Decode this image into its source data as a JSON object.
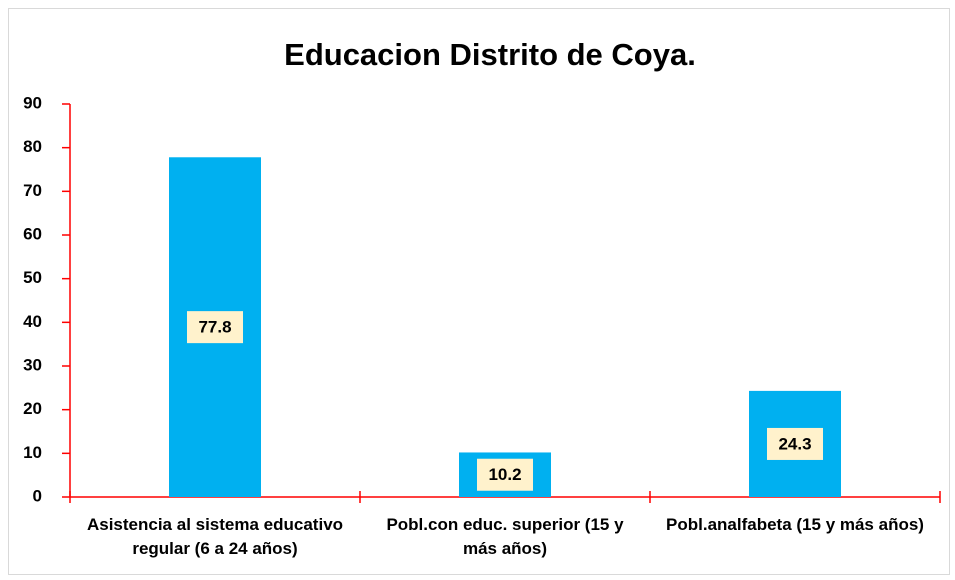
{
  "chart_data": {
    "type": "bar",
    "title": "Educacion Distrito de Coya.",
    "categories": [
      "Asistencia al sistema educativo regular (6 a 24 años)",
      "Pobl.con educ. superior (15 y más años)",
      "Pobl.analfabeta (15 y más años)"
    ],
    "values": [
      77.8,
      10.2,
      24.3
    ],
    "color": "#00b0f0",
    "axis_color": "#ff0000",
    "label_background": "#fff2cc",
    "ylim": [
      0,
      90
    ],
    "yticks": [
      0,
      10,
      20,
      30,
      40,
      50,
      60,
      70,
      80,
      90
    ],
    "grid": false
  }
}
